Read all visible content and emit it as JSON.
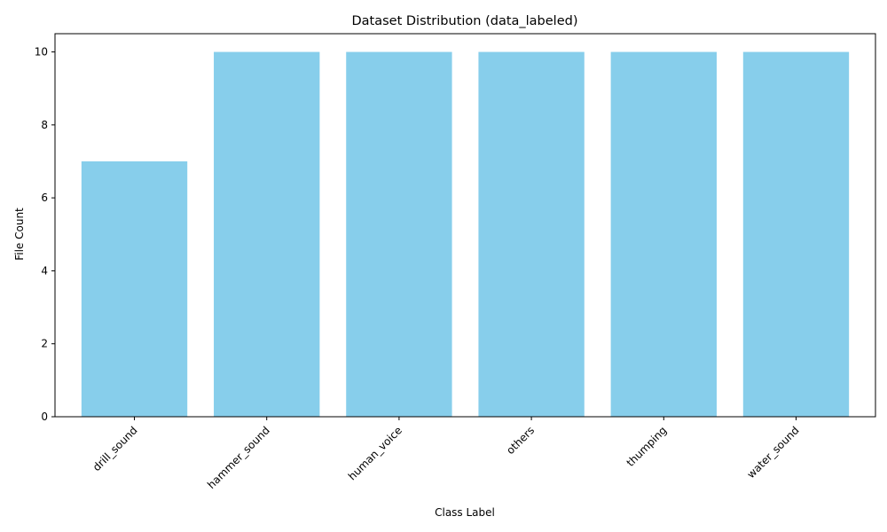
{
  "chart_data": {
    "type": "bar",
    "title": "Dataset Distribution (data_labeled)",
    "xlabel": "Class Label",
    "ylabel": "File Count",
    "categories": [
      "drill_sound",
      "hammer_sound",
      "human_voice",
      "others",
      "thumping",
      "water_sound"
    ],
    "values": [
      7,
      10,
      10,
      10,
      10,
      10
    ],
    "yticks": [
      0,
      2,
      4,
      6,
      8,
      10
    ],
    "ylim": [
      0,
      10.5
    ],
    "bar_color": "#87ceeb",
    "grid": false,
    "legend": false
  }
}
